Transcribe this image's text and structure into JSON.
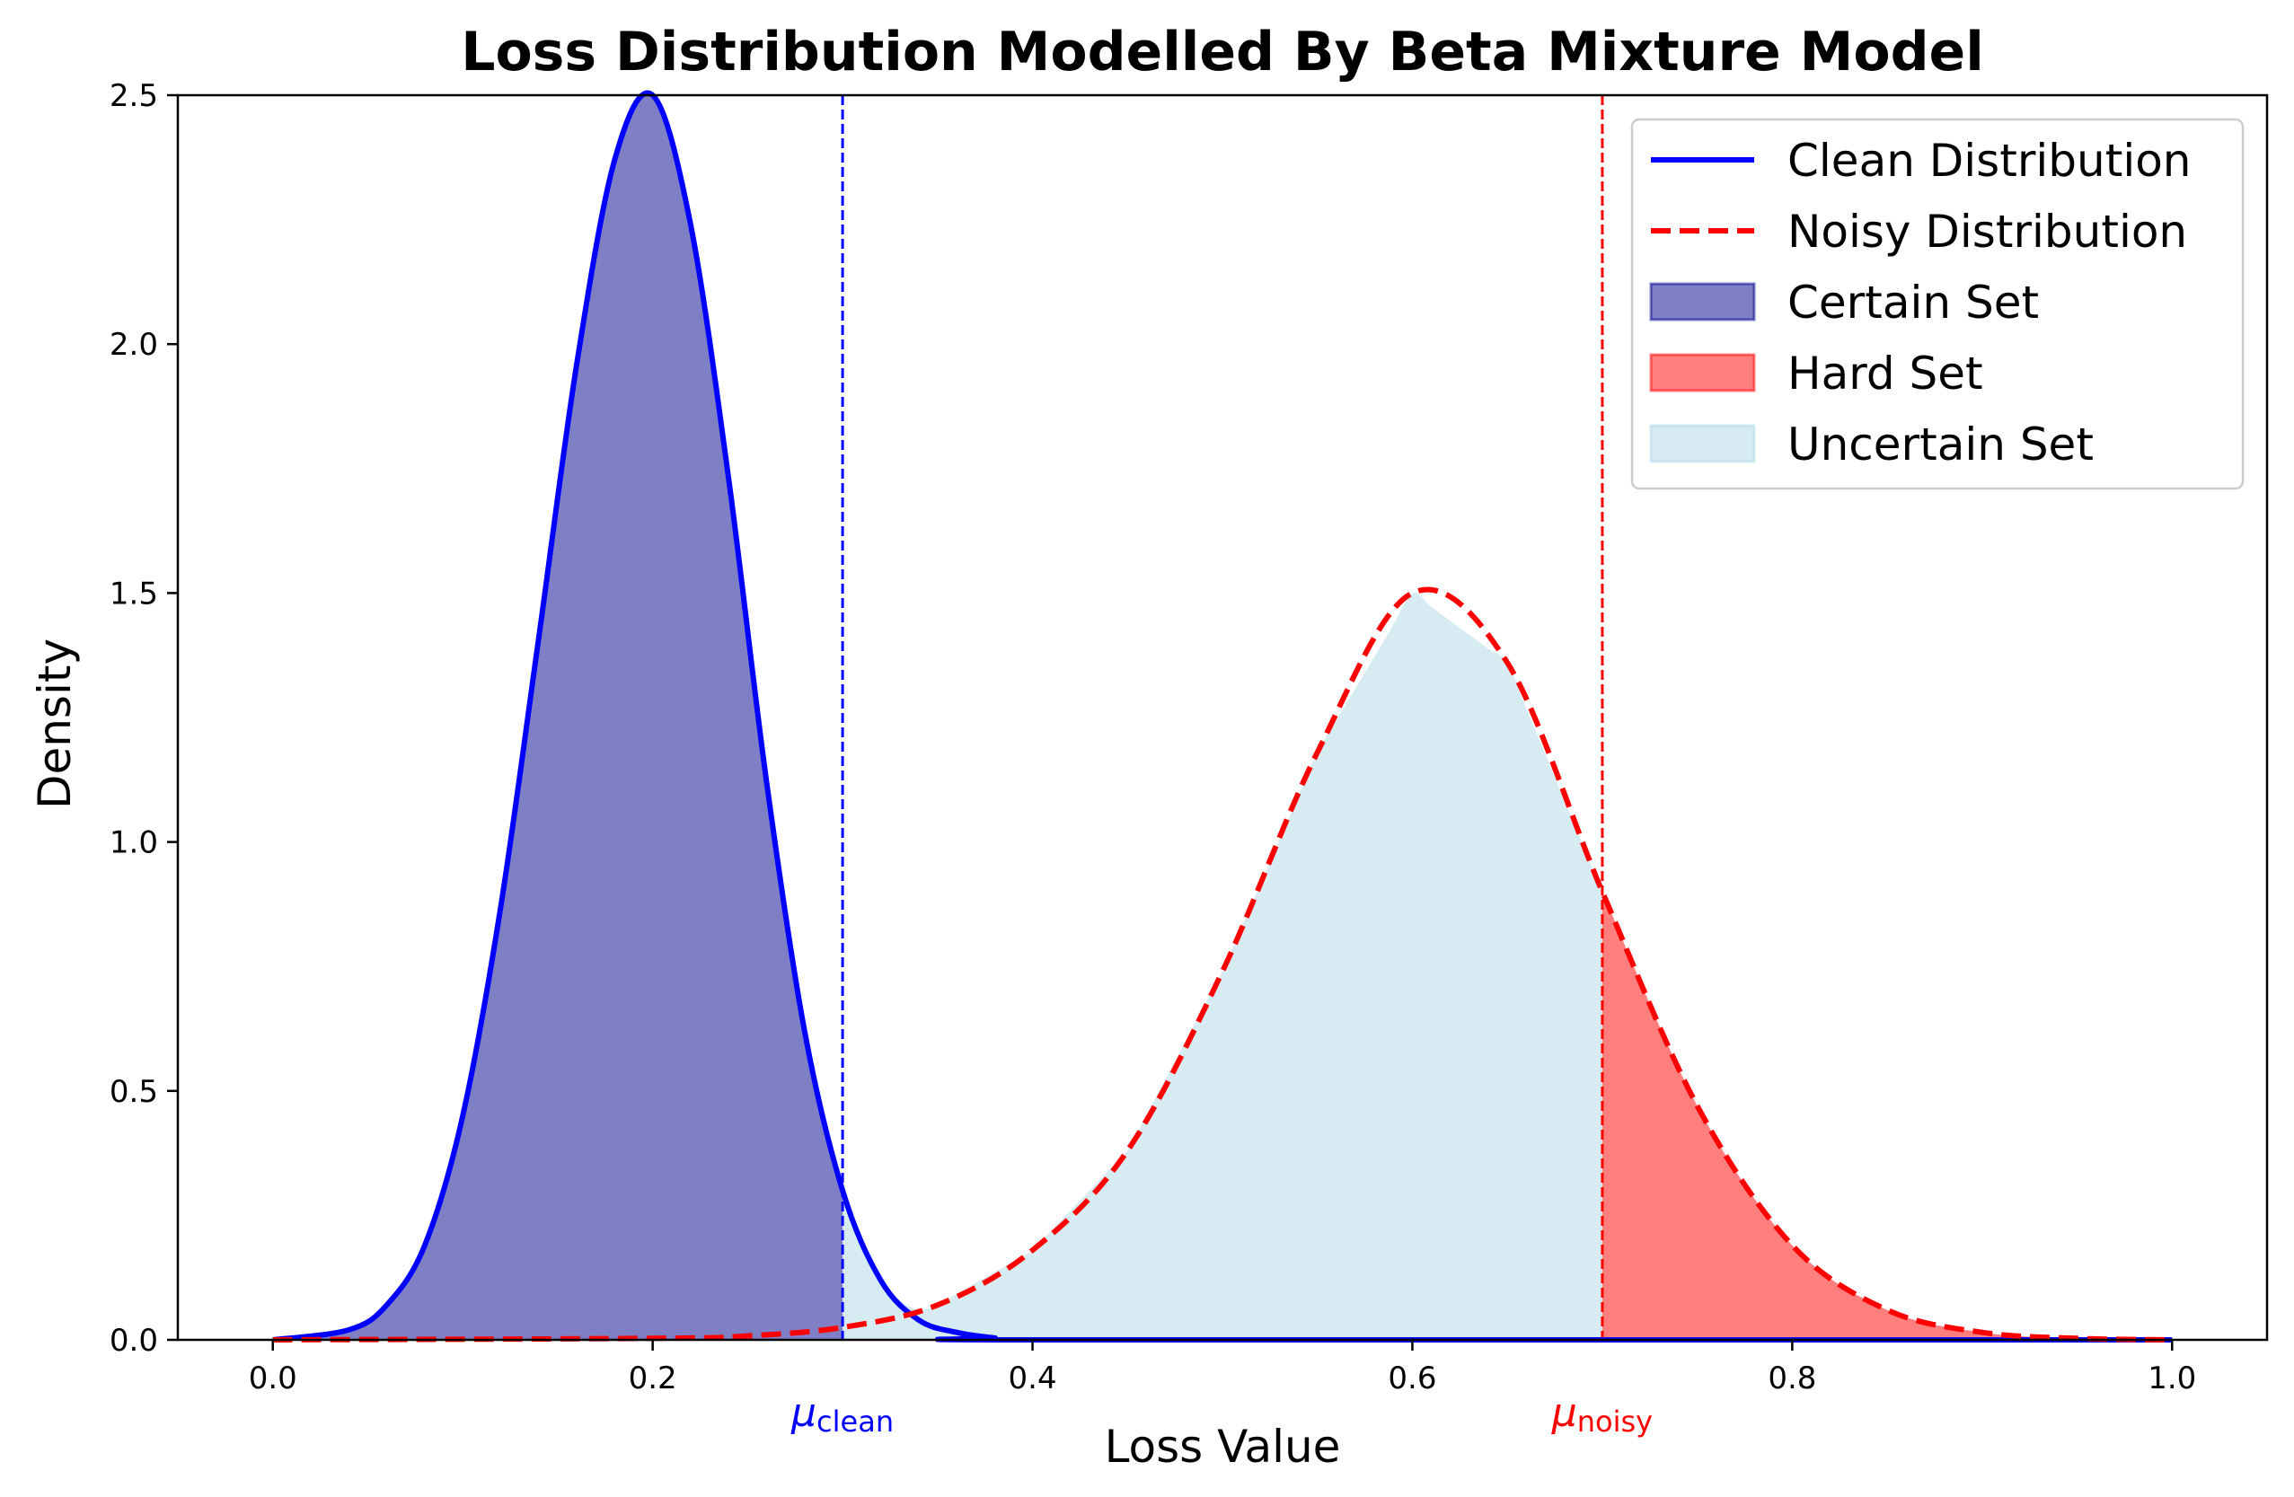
{
  "chart_data": {
    "type": "area",
    "title": "Loss Distribution Modelled By Beta Mixture Model",
    "xlabel": "Loss Value",
    "ylabel": "Density",
    "xlim": [
      -0.05,
      1.05
    ],
    "ylim": [
      0,
      2.5
    ],
    "x_ticks": [
      {
        "value": 0.0,
        "label": "0.0"
      },
      {
        "value": 0.2,
        "label": "0.2"
      },
      {
        "value": 0.4,
        "label": "0.4"
      },
      {
        "value": 0.6,
        "label": "0.6"
      },
      {
        "value": 0.8,
        "label": "0.8"
      },
      {
        "value": 1.0,
        "label": "1.0"
      }
    ],
    "y_ticks": [
      {
        "value": 0.0,
        "label": "0.0"
      },
      {
        "value": 0.5,
        "label": "0.5"
      },
      {
        "value": 1.0,
        "label": "1.0"
      },
      {
        "value": 1.5,
        "label": "1.5"
      },
      {
        "value": 2.0,
        "label": "2.0"
      },
      {
        "value": 2.5,
        "label": "2.5"
      }
    ],
    "grid": false,
    "legend_position": "top-right",
    "series": [
      {
        "name": "Clean Distribution",
        "style": "solid",
        "color": "#0000ff",
        "x": [
          0.0,
          0.04,
          0.06,
          0.08,
          0.1,
          0.12,
          0.14,
          0.16,
          0.18,
          0.2,
          0.22,
          0.24,
          0.26,
          0.28,
          0.3,
          0.32,
          0.34,
          0.36,
          0.38,
          0.4,
          1.0
        ],
        "y": [
          0.0,
          0.02,
          0.07,
          0.19,
          0.45,
          0.87,
          1.41,
          1.96,
          2.37,
          2.5,
          2.24,
          1.73,
          1.12,
          0.62,
          0.3,
          0.12,
          0.04,
          0.015,
          0.004,
          0.0,
          0.0
        ]
      },
      {
        "name": "Noisy Distribution",
        "style": "dashed",
        "color": "#ff0000",
        "x": [
          0.0,
          0.2,
          0.25,
          0.3,
          0.35,
          0.4,
          0.45,
          0.5,
          0.55,
          0.6,
          0.65,
          0.7,
          0.75,
          0.8,
          0.85,
          0.9,
          0.95,
          1.0
        ],
        "y": [
          0.0,
          0.003,
          0.008,
          0.025,
          0.07,
          0.18,
          0.38,
          0.74,
          1.18,
          1.5,
          1.36,
          0.9,
          0.47,
          0.19,
          0.06,
          0.015,
          0.003,
          0.0
        ]
      }
    ],
    "regions": [
      {
        "name": "Certain Set",
        "from": 0.0,
        "to": 0.3,
        "under": "Clean Distribution",
        "color": "#00008b",
        "opacity": 0.5
      },
      {
        "name": "Hard Set",
        "from": 0.7,
        "to": 1.0,
        "under": "Noisy Distribution",
        "color": "#ff0000",
        "opacity": 0.5
      },
      {
        "name": "Uncertain Set",
        "from": 0.3,
        "to": 0.7,
        "under": "max of both",
        "color": "#add8e6",
        "opacity": 0.5
      }
    ],
    "vlines": [
      {
        "x": 0.3,
        "color": "#0000ff",
        "label_symbol": "μ",
        "label_sub": "clean"
      },
      {
        "x": 0.7,
        "color": "#ff0000",
        "label_symbol": "μ",
        "label_sub": "noisy"
      }
    ],
    "legend": [
      {
        "label": "Clean Distribution",
        "kind": "line",
        "style": "solid",
        "color": "#0000ff"
      },
      {
        "label": "Noisy Distribution",
        "kind": "line",
        "style": "dashed",
        "color": "#ff0000"
      },
      {
        "label": "Certain Set",
        "kind": "patch",
        "color": "#00008b",
        "opacity": 0.5
      },
      {
        "label": "Hard Set",
        "kind": "patch",
        "color": "#ff0000",
        "opacity": 0.5
      },
      {
        "label": "Uncertain Set",
        "kind": "patch",
        "color": "#add8e6",
        "opacity": 0.5
      }
    ]
  }
}
